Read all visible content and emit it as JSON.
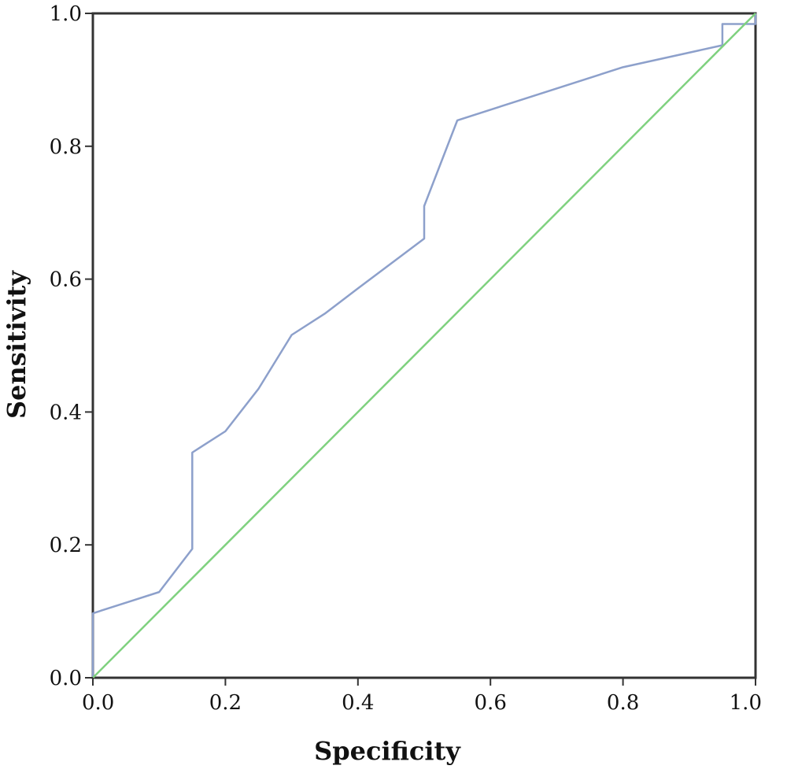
{
  "chart_data": {
    "type": "line",
    "title": "",
    "xlabel": "Specificity",
    "ylabel": "Sensitivity",
    "xlim": [
      0,
      1
    ],
    "ylim": [
      0,
      1
    ],
    "xticks": [
      "0.0",
      "0.2",
      "0.4",
      "0.6",
      "0.8",
      "1.0"
    ],
    "yticks": [
      "0.0",
      "0.2",
      "0.4",
      "0.6",
      "0.8",
      "1.0"
    ],
    "grid": false,
    "legend": "none",
    "series": [
      {
        "color": "#8da0cb",
        "points": [
          [
            0.0,
            0.0
          ],
          [
            0.0,
            0.097
          ],
          [
            0.1,
            0.129
          ],
          [
            0.15,
            0.194
          ],
          [
            0.15,
            0.339
          ],
          [
            0.2,
            0.371
          ],
          [
            0.25,
            0.435
          ],
          [
            0.3,
            0.516
          ],
          [
            0.35,
            0.548
          ],
          [
            0.4,
            0.586
          ],
          [
            0.5,
            0.661
          ],
          [
            0.5,
            0.71
          ],
          [
            0.55,
            0.839
          ],
          [
            0.8,
            0.919
          ],
          [
            0.95,
            0.952
          ],
          [
            0.95,
            0.984
          ],
          [
            1.0,
            0.984
          ],
          [
            1.0,
            1.0
          ]
        ]
      },
      {
        "color": "#7fd17f",
        "points": [
          [
            0.0,
            0.0
          ],
          [
            1.0,
            1.0
          ]
        ]
      }
    ]
  }
}
